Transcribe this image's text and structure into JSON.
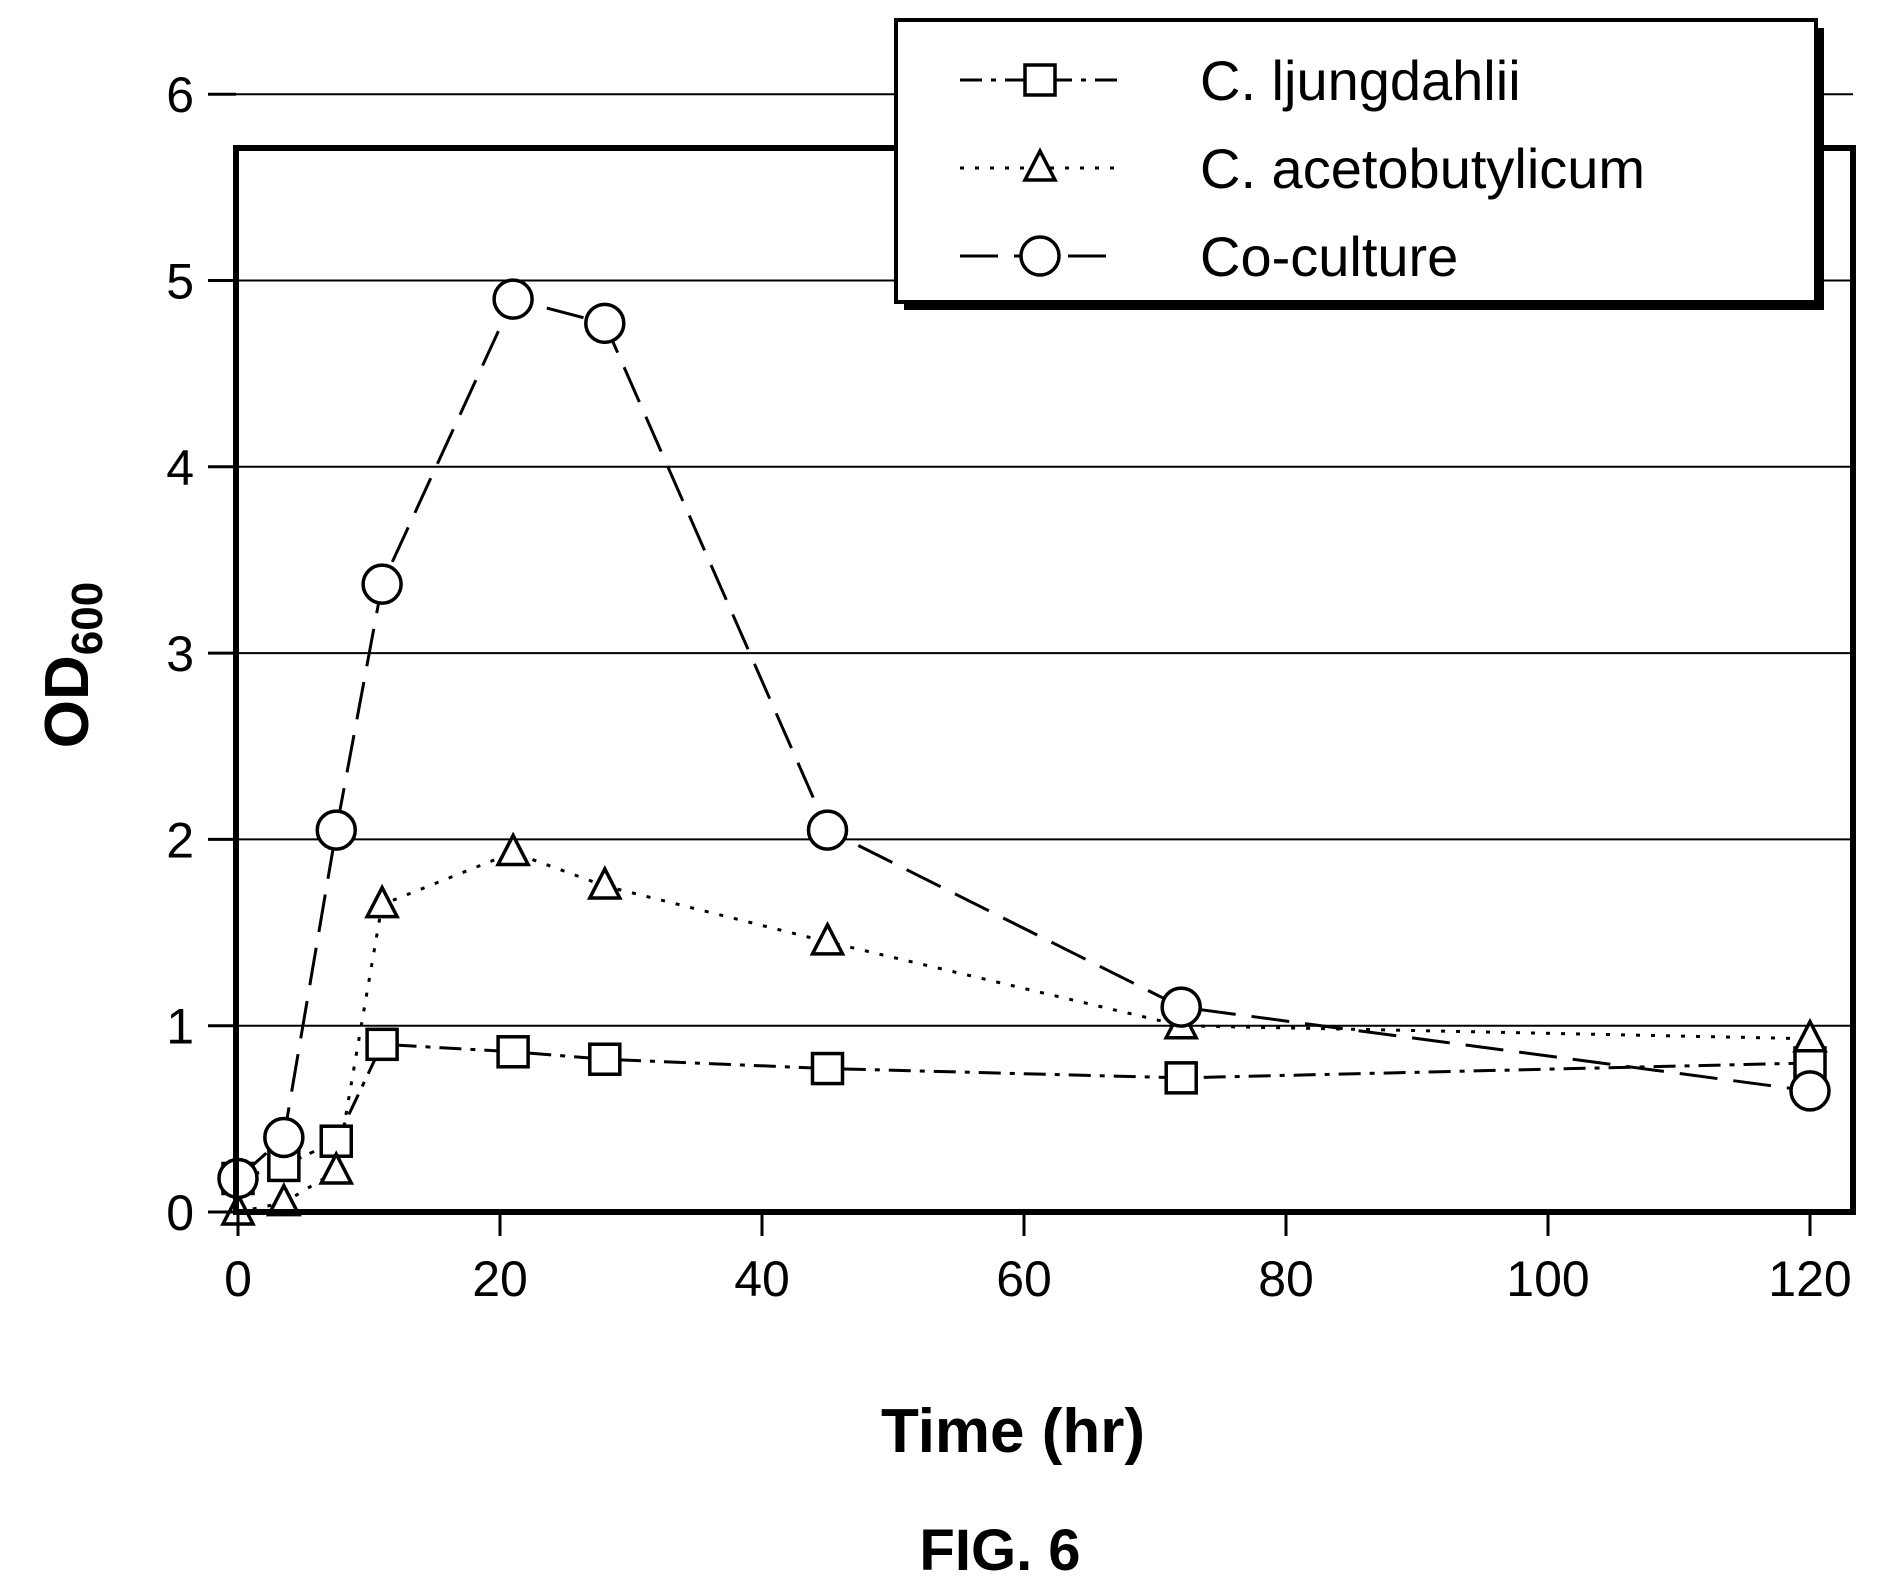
{
  "figure_label": "FIG. 6",
  "chart_data": {
    "type": "line",
    "xlabel": "Time (hr)",
    "ylabel": {
      "main": "OD",
      "subscript": "600"
    },
    "xlim": [
      0,
      120
    ],
    "ylim": [
      0,
      6
    ],
    "xticks": [
      0,
      20,
      40,
      60,
      80,
      100,
      120
    ],
    "yticks": [
      0,
      1,
      2,
      3,
      4,
      5,
      6
    ],
    "grid": "horizontal",
    "legend_position": "top-right",
    "series": [
      {
        "name": "C. ljungdahlii",
        "marker": "square",
        "line_style": "dash-dot",
        "x": [
          0,
          3.5,
          7.5,
          11,
          21,
          28,
          45,
          72,
          120
        ],
        "y": [
          0.18,
          0.25,
          0.38,
          0.9,
          0.86,
          0.82,
          0.77,
          0.72,
          0.8
        ]
      },
      {
        "name": "C. acetobutylicum",
        "marker": "triangle",
        "line_style": "dotted",
        "x": [
          0,
          3.5,
          7.5,
          11,
          21,
          28,
          45,
          72,
          120
        ],
        "y": [
          0.0,
          0.05,
          0.22,
          1.65,
          1.93,
          1.75,
          1.45,
          1.0,
          0.93
        ]
      },
      {
        "name": "Co-culture",
        "marker": "circle",
        "line_style": "dashed",
        "x": [
          0,
          3.5,
          7.5,
          11,
          21,
          28,
          45,
          72,
          120
        ],
        "y": [
          0.18,
          0.4,
          2.05,
          3.37,
          4.9,
          4.77,
          2.05,
          1.1,
          0.65
        ]
      }
    ]
  }
}
